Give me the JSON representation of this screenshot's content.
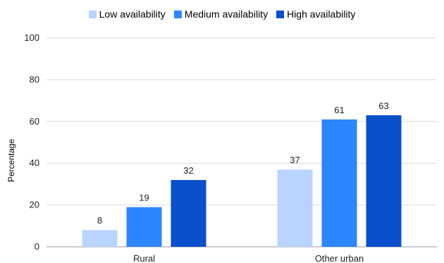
{
  "chart_data": {
    "type": "bar",
    "title": "",
    "xlabel": "",
    "ylabel": "Percentage",
    "ylim": [
      0,
      100
    ],
    "yticks": [
      0,
      20,
      40,
      60,
      80,
      100
    ],
    "grid": true,
    "legend_position": "top",
    "categories": [
      "Rural",
      "Other urban"
    ],
    "series": [
      {
        "name": "Low availability",
        "values": [
          8,
          37
        ],
        "color": "#b9d4ff"
      },
      {
        "name": "Medium availability",
        "values": [
          19,
          61
        ],
        "color": "#2c86ff"
      },
      {
        "name": "High availability",
        "values": [
          32,
          63
        ],
        "color": "#0a4fcb"
      }
    ]
  }
}
